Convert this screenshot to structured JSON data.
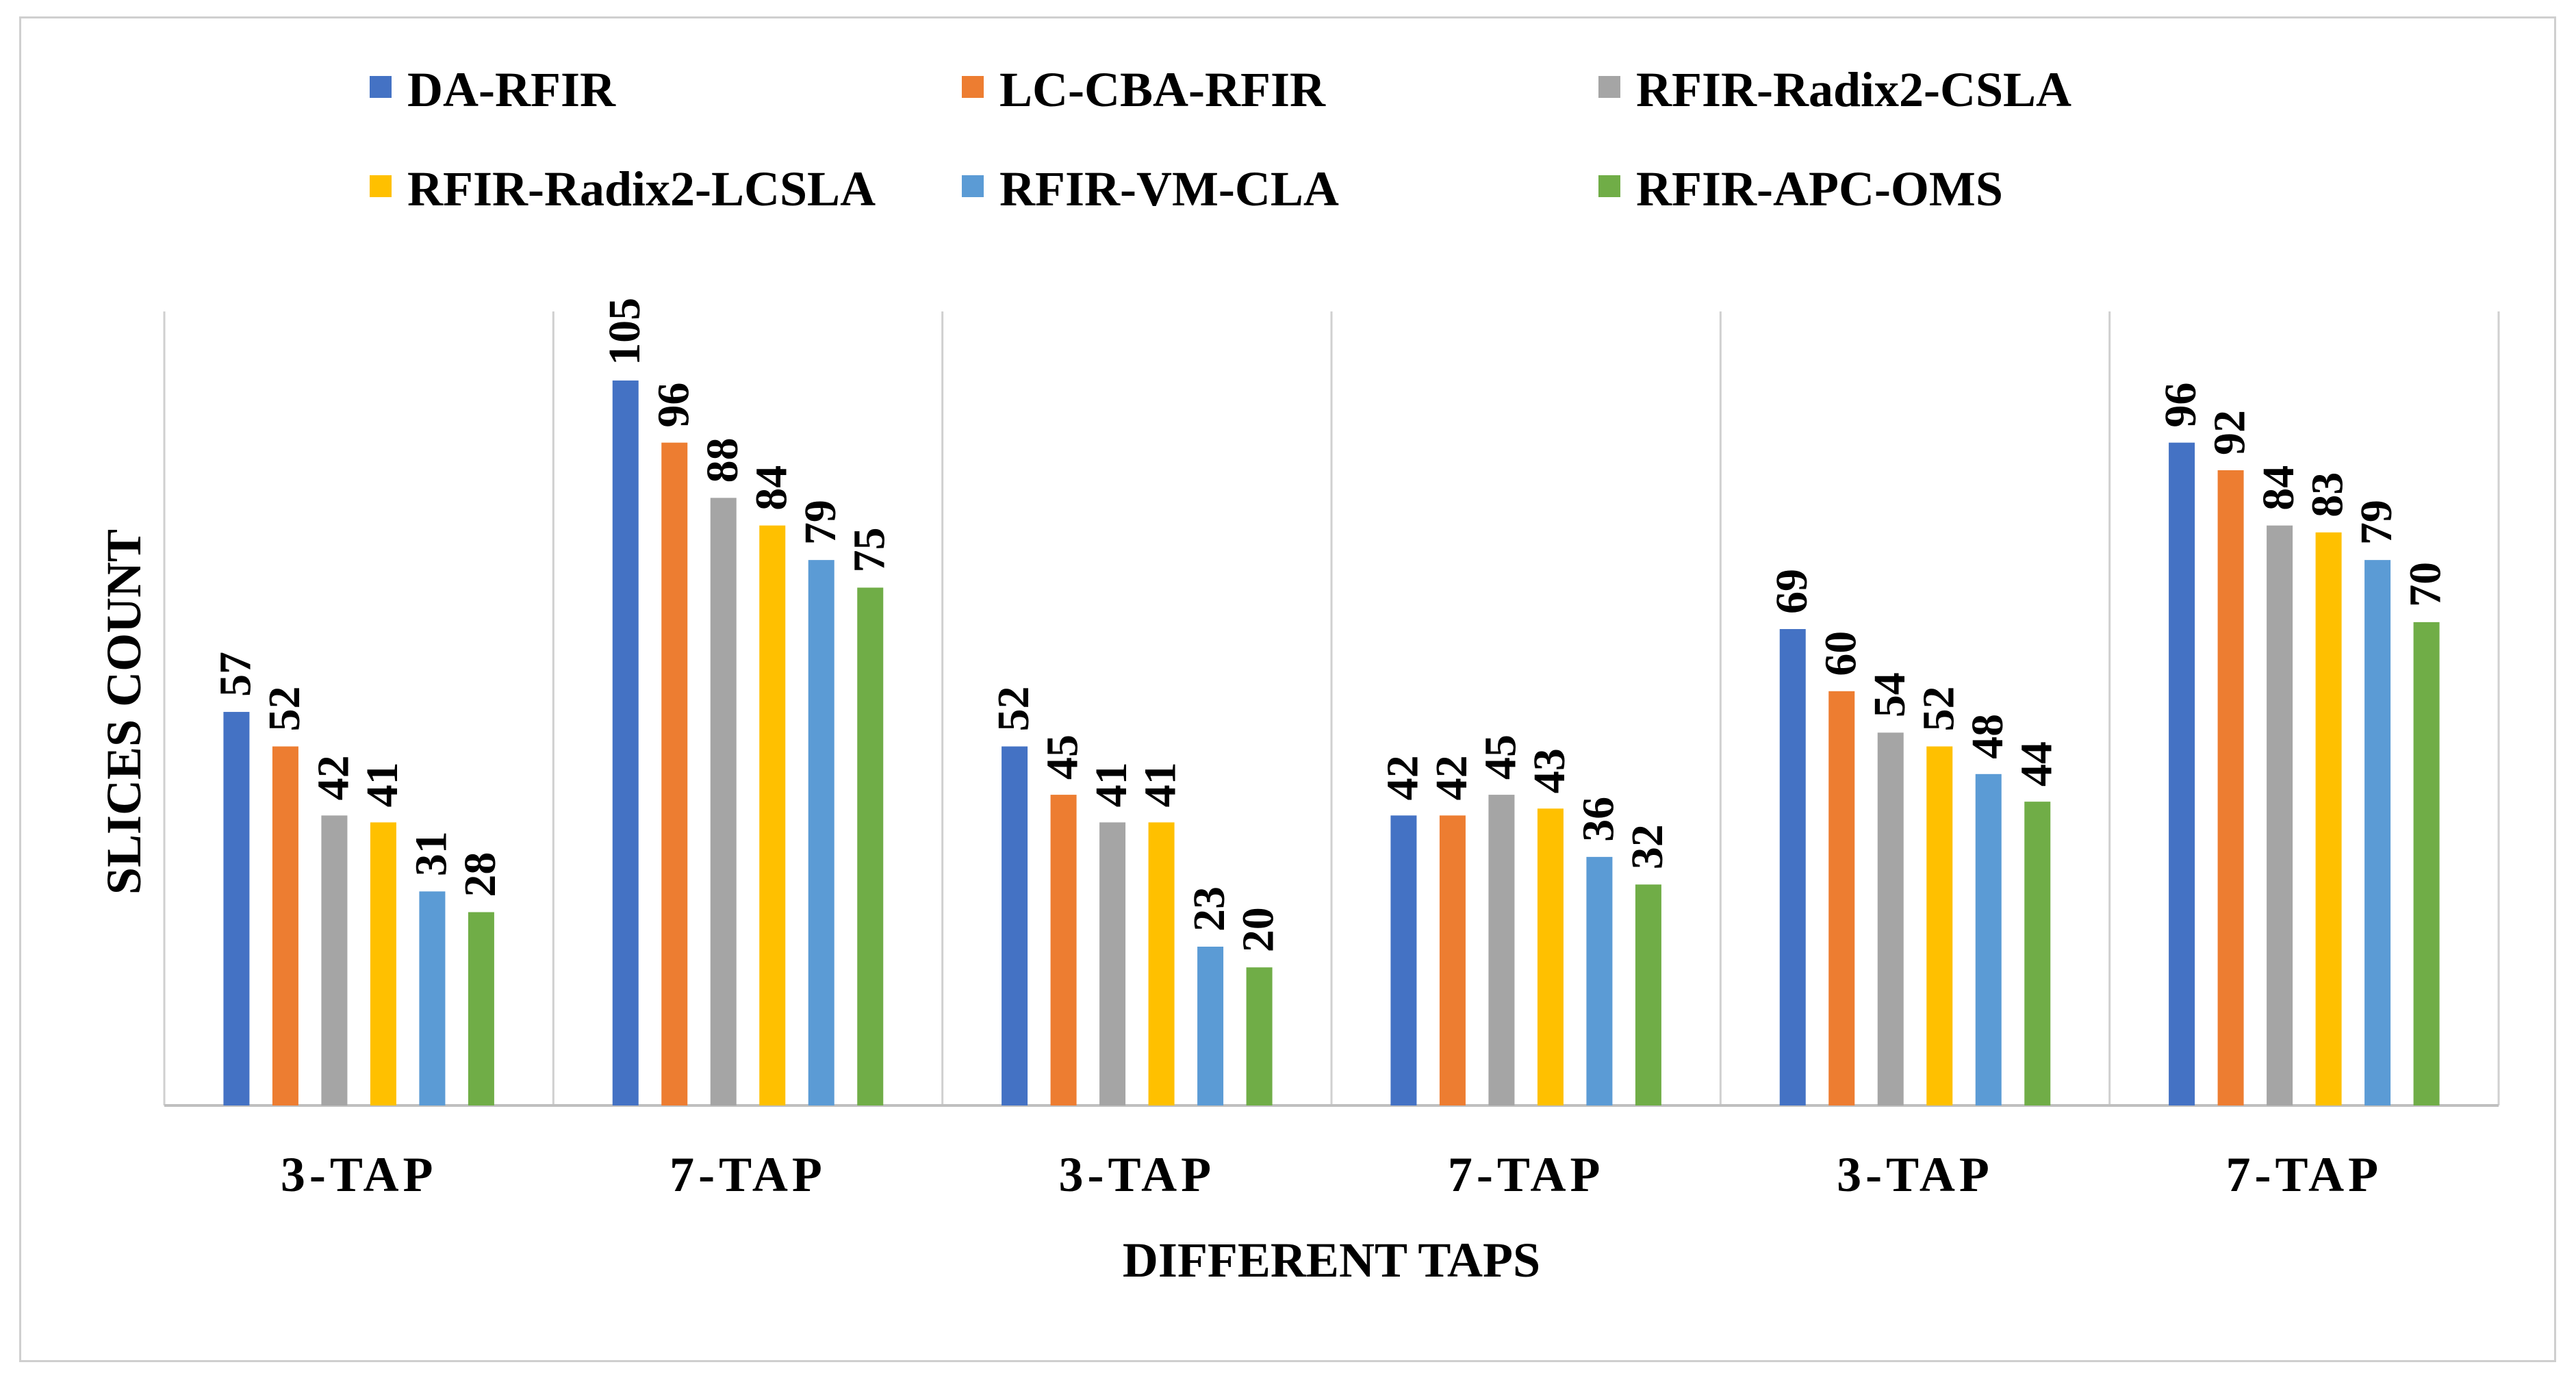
{
  "chart_data": {
    "type": "bar",
    "title": "",
    "xlabel": "DIFFERENT TAPS",
    "ylabel": "SLICES COUNT",
    "categories": [
      "3-TAP",
      "7-TAP",
      "3-TAP",
      "7-TAP",
      "3-TAP",
      "7-TAP"
    ],
    "ylim": [
      0,
      115
    ],
    "grid": false,
    "legend_position": "top",
    "series": [
      {
        "name": "DA-RFIR",
        "color": "#4472C4",
        "values": [
          57,
          105,
          52,
          42,
          69,
          96
        ]
      },
      {
        "name": "LC-CBA-RFIR",
        "color": "#ED7D31",
        "values": [
          52,
          96,
          45,
          42,
          60,
          92
        ]
      },
      {
        "name": "RFIR-Radix2-CSLA",
        "color": "#A5A5A5",
        "values": [
          42,
          88,
          41,
          45,
          54,
          84
        ]
      },
      {
        "name": "RFIR-Radix2-LCSLA",
        "color": "#FFC000",
        "values": [
          41,
          84,
          41,
          43,
          52,
          83
        ]
      },
      {
        "name": "RFIR-VM-CLA",
        "color": "#5B9BD5",
        "values": [
          31,
          79,
          23,
          36,
          48,
          79
        ]
      },
      {
        "name": "RFIR-APC-OMS",
        "color": "#70AD47",
        "values": [
          28,
          75,
          20,
          32,
          44,
          70
        ]
      }
    ]
  }
}
